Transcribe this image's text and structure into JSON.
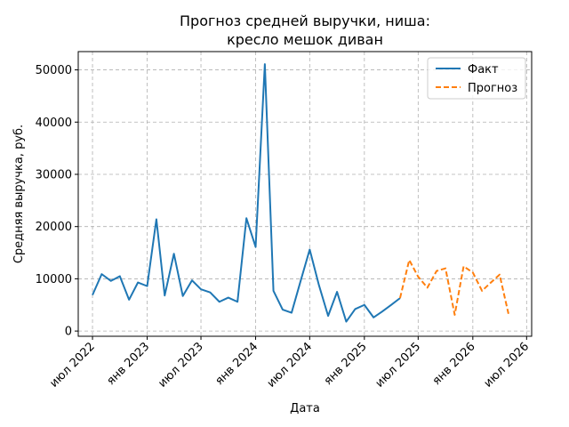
{
  "chart_data": {
    "type": "line",
    "title_lines": [
      "Прогноз средней выручки, ниша:",
      "кресло мешок диван"
    ],
    "xlabel": "Дата",
    "ylabel": "Средняя выручка, руб.",
    "ylim": [
      -1000,
      53500
    ],
    "xlim": [
      "2022-05-14",
      "2026-07-18"
    ],
    "yticks": [
      0,
      10000,
      20000,
      30000,
      40000,
      50000
    ],
    "ytick_labels": [
      "0",
      "10000",
      "20000",
      "30000",
      "40000",
      "50000"
    ],
    "xticks": [
      "2022-07-01",
      "2023-01-01",
      "2023-07-01",
      "2024-01-01",
      "2024-07-01",
      "2025-01-01",
      "2025-07-01",
      "2026-01-01",
      "2026-07-01"
    ],
    "xtick_labels": [
      "июл 2022",
      "янв 2023",
      "июл 2023",
      "янв 2024",
      "июл 2024",
      "янв 2025",
      "июл 2025",
      "янв 2026",
      "июл 2026"
    ],
    "grid": true,
    "legend_position": "top-right",
    "series": [
      {
        "name": "Факт",
        "color": "#1f77b4",
        "style": "solid",
        "points": [
          [
            "2022-07-01",
            6900
          ],
          [
            "2022-08-01",
            10900
          ],
          [
            "2022-09-01",
            9600
          ],
          [
            "2022-10-01",
            10500
          ],
          [
            "2022-11-01",
            6000
          ],
          [
            "2022-12-01",
            9300
          ],
          [
            "2023-01-01",
            8600
          ],
          [
            "2023-02-01",
            21400
          ],
          [
            "2023-03-01",
            6800
          ],
          [
            "2023-04-01",
            14800
          ],
          [
            "2023-05-01",
            6700
          ],
          [
            "2023-06-01",
            9700
          ],
          [
            "2023-07-01",
            8000
          ],
          [
            "2023-08-01",
            7400
          ],
          [
            "2023-09-01",
            5600
          ],
          [
            "2023-10-01",
            6400
          ],
          [
            "2023-11-01",
            5600
          ],
          [
            "2023-12-01",
            21600
          ],
          [
            "2024-01-01",
            16100
          ],
          [
            "2024-02-01",
            51100
          ],
          [
            "2024-03-01",
            7700
          ],
          [
            "2024-04-01",
            4100
          ],
          [
            "2024-05-01",
            3500
          ],
          [
            "2024-06-01",
            9700
          ],
          [
            "2024-07-01",
            15600
          ],
          [
            "2024-08-01",
            8800
          ],
          [
            "2024-09-01",
            2900
          ],
          [
            "2024-10-01",
            7500
          ],
          [
            "2024-11-01",
            1800
          ],
          [
            "2024-12-01",
            4200
          ],
          [
            "2025-01-01",
            5000
          ],
          [
            "2025-02-01",
            2600
          ],
          [
            "2025-03-01",
            3700
          ],
          [
            "2025-04-01",
            5000
          ],
          [
            "2025-05-01",
            6300
          ]
        ]
      },
      {
        "name": "Прогноз",
        "color": "#ff7f0e",
        "style": "dashed",
        "points": [
          [
            "2025-05-01",
            6300
          ],
          [
            "2025-06-01",
            13600
          ],
          [
            "2025-07-01",
            10400
          ],
          [
            "2025-08-01",
            8300
          ],
          [
            "2025-09-01",
            11500
          ],
          [
            "2025-10-01",
            12000
          ],
          [
            "2025-11-01",
            3100
          ],
          [
            "2025-12-01",
            12400
          ],
          [
            "2026-01-01",
            11200
          ],
          [
            "2026-02-01",
            7700
          ],
          [
            "2026-03-01",
            9200
          ],
          [
            "2026-04-01",
            10800
          ],
          [
            "2026-05-01",
            3300
          ]
        ]
      }
    ]
  }
}
